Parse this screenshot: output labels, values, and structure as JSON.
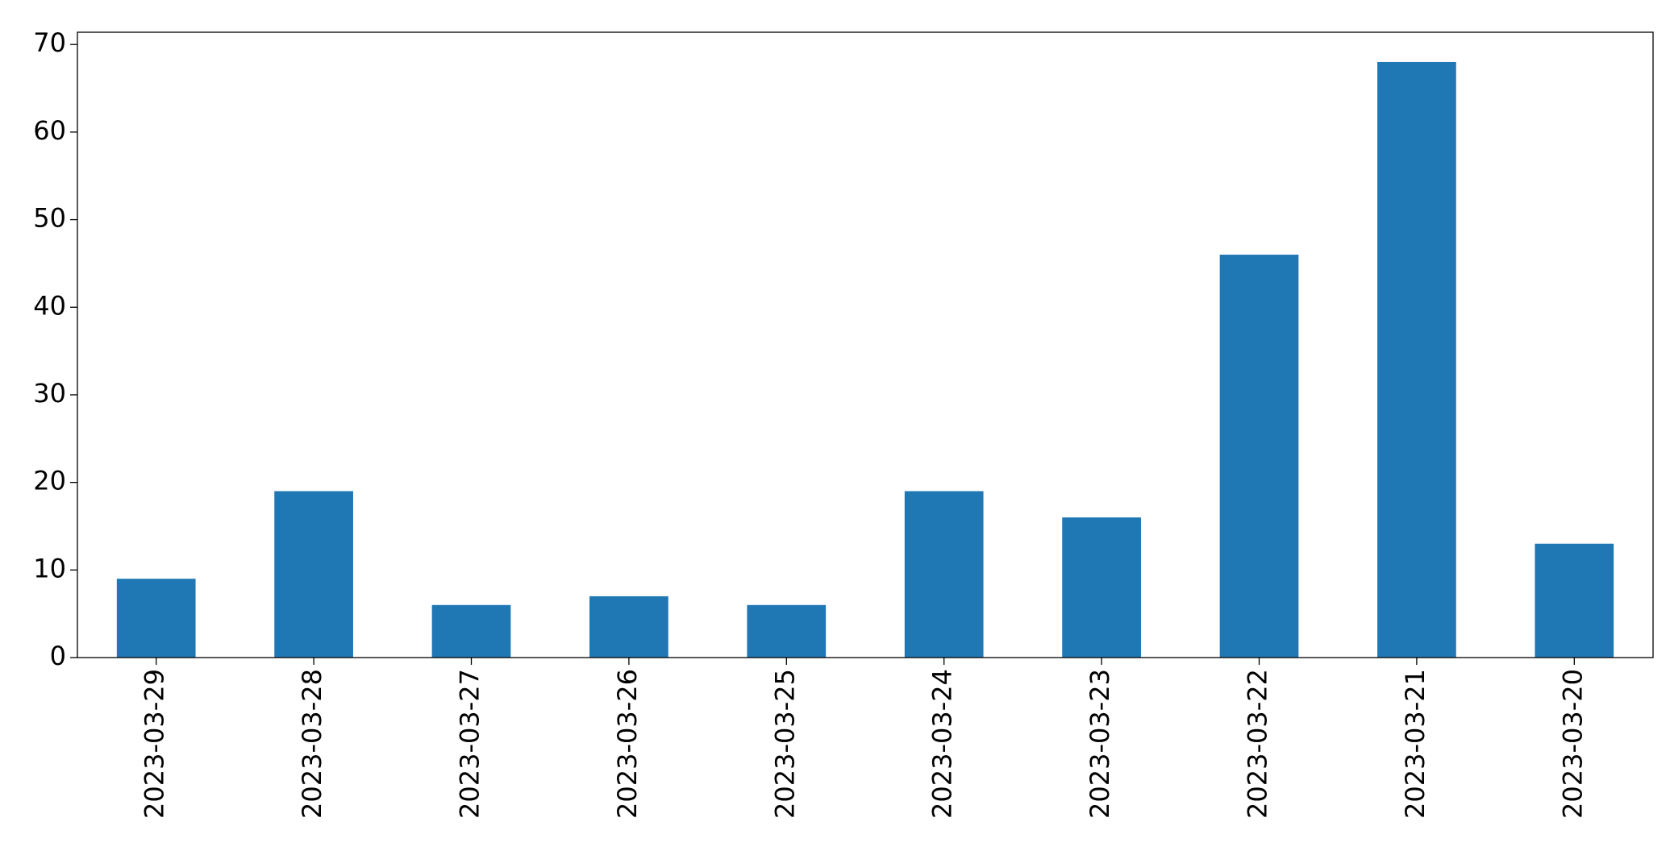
{
  "chart_data": {
    "type": "bar",
    "categories": [
      "2023-03-29",
      "2023-03-28",
      "2023-03-27",
      "2023-03-26",
      "2023-03-25",
      "2023-03-24",
      "2023-03-23",
      "2023-03-22",
      "2023-03-21",
      "2023-03-20"
    ],
    "values": [
      9,
      19,
      6,
      7,
      6,
      19,
      16,
      46,
      68,
      13
    ],
    "color": "#1f77b4",
    "ylim": [
      0,
      71.4
    ],
    "yticks": [
      0,
      10,
      20,
      30,
      40,
      50,
      60,
      70
    ],
    "grid": false
  }
}
